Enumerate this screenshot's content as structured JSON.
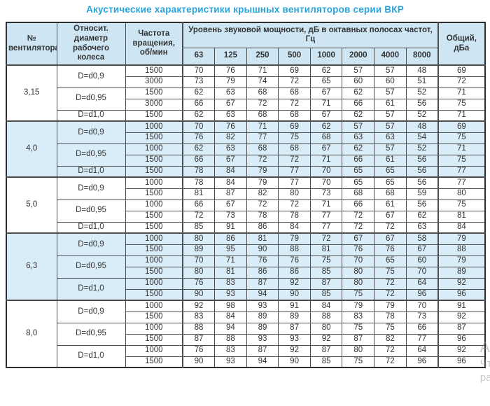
{
  "title": "Акустические характеристики крышных вентиляторов серии ВКР",
  "colors": {
    "title_accent": "#29a3dc",
    "header_bg": "#cee6f4",
    "shaded_row_bg": "#d9edf8",
    "border": "#4d4d4d"
  },
  "watermark": {
    "fragments": [
      "Ак",
      "Чт",
      "ра"
    ]
  },
  "table": {
    "headers": {
      "fan": "№ вентилятора",
      "diameter": "Относит. диаметр рабочего колеса",
      "speed": "Частота вращения, об/мин",
      "span": "Уровень звуковой мощности, дБ в октавных полосах частот, Гц",
      "frequencies": [
        "63",
        "125",
        "250",
        "500",
        "1000",
        "2000",
        "4000",
        "8000"
      ],
      "total": "Общий, дБа"
    },
    "groups": [
      {
        "fan": "3,15",
        "shaded": false,
        "diameters": [
          {
            "label": "D=d0,9",
            "rows": [
              {
                "speed": "1500",
                "levels": [
                  70,
                  76,
                  71,
                  69,
                  62,
                  57,
                  57,
                  48
                ],
                "total": 69
              },
              {
                "speed": "3000",
                "levels": [
                  73,
                  79,
                  74,
                  72,
                  65,
                  60,
                  60,
                  51
                ],
                "total": 72
              }
            ]
          },
          {
            "label": "D=d0,95",
            "rows": [
              {
                "speed": "1500",
                "levels": [
                  62,
                  63,
                  68,
                  68,
                  67,
                  62,
                  57,
                  52
                ],
                "total": 71
              },
              {
                "speed": "3000",
                "levels": [
                  66,
                  67,
                  72,
                  72,
                  71,
                  66,
                  61,
                  56
                ],
                "total": 75
              }
            ]
          },
          {
            "label": "D=d1,0",
            "rows": [
              {
                "speed": "1500",
                "levels": [
                  62,
                  63,
                  68,
                  68,
                  67,
                  62,
                  57,
                  52
                ],
                "total": 71
              }
            ]
          }
        ]
      },
      {
        "fan": "4,0",
        "shaded": true,
        "diameters": [
          {
            "label": "D=d0,9",
            "rows": [
              {
                "speed": "1000",
                "levels": [
                  70,
                  76,
                  71,
                  69,
                  62,
                  57,
                  57,
                  48
                ],
                "total": 69
              },
              {
                "speed": "1500",
                "levels": [
                  76,
                  82,
                  77,
                  75,
                  68,
                  63,
                  63,
                  54
                ],
                "total": 75
              }
            ]
          },
          {
            "label": "D=d0,95",
            "rows": [
              {
                "speed": "1000",
                "levels": [
                  62,
                  63,
                  68,
                  68,
                  67,
                  62,
                  57,
                  52
                ],
                "total": 71
              },
              {
                "speed": "1500",
                "levels": [
                  66,
                  67,
                  72,
                  72,
                  71,
                  66,
                  61,
                  56
                ],
                "total": 75
              }
            ]
          },
          {
            "label": "D=d1,0",
            "rows": [
              {
                "speed": "1500",
                "levels": [
                  78,
                  84,
                  79,
                  77,
                  70,
                  65,
                  65,
                  56
                ],
                "total": 77
              }
            ]
          }
        ]
      },
      {
        "fan": "5,0",
        "shaded": false,
        "diameters": [
          {
            "label": "D=d0,9",
            "rows": [
              {
                "speed": "1000",
                "levels": [
                  78,
                  84,
                  79,
                  77,
                  70,
                  65,
                  65,
                  56
                ],
                "total": 77
              },
              {
                "speed": "1500",
                "levels": [
                  81,
                  87,
                  82,
                  80,
                  73,
                  68,
                  68,
                  59
                ],
                "total": 80
              }
            ]
          },
          {
            "label": "D=d0,95",
            "rows": [
              {
                "speed": "1000",
                "levels": [
                  66,
                  67,
                  72,
                  72,
                  71,
                  66,
                  61,
                  56
                ],
                "total": 75
              },
              {
                "speed": "1500",
                "levels": [
                  72,
                  73,
                  78,
                  78,
                  77,
                  72,
                  67,
                  62
                ],
                "total": 81
              }
            ]
          },
          {
            "label": "D=d1,0",
            "rows": [
              {
                "speed": "1500",
                "levels": [
                  85,
                  91,
                  86,
                  84,
                  77,
                  72,
                  72,
                  63
                ],
                "total": 84
              }
            ]
          }
        ]
      },
      {
        "fan": "6,3",
        "shaded": true,
        "diameters": [
          {
            "label": "D=d0,9",
            "rows": [
              {
                "speed": "1000",
                "levels": [
                  80,
                  86,
                  81,
                  79,
                  72,
                  67,
                  67,
                  58
                ],
                "total": 79
              },
              {
                "speed": "1500",
                "levels": [
                  89,
                  95,
                  90,
                  88,
                  81,
                  76,
                  76,
                  67
                ],
                "total": 88
              }
            ]
          },
          {
            "label": "D=d0,95",
            "rows": [
              {
                "speed": "1000",
                "levels": [
                  70,
                  71,
                  76,
                  76,
                  75,
                  70,
                  65,
                  60
                ],
                "total": 79
              },
              {
                "speed": "1500",
                "levels": [
                  80,
                  81,
                  86,
                  86,
                  85,
                  80,
                  75,
                  70
                ],
                "total": 89
              }
            ]
          },
          {
            "label": "D=d1,0",
            "rows": [
              {
                "speed": "1000",
                "levels": [
                  76,
                  83,
                  87,
                  92,
                  87,
                  80,
                  72,
                  64
                ],
                "total": 92
              },
              {
                "speed": "1500",
                "levels": [
                  90,
                  93,
                  94,
                  90,
                  85,
                  75,
                  72,
                  96
                ],
                "total": 96
              }
            ]
          }
        ]
      },
      {
        "fan": "8,0",
        "shaded": false,
        "diameters": [
          {
            "label": "D=d0,9",
            "rows": [
              {
                "speed": "1000",
                "levels": [
                  92,
                  98,
                  93,
                  91,
                  84,
                  79,
                  79,
                  70
                ],
                "total": 91
              },
              {
                "speed": "1500",
                "levels": [
                  83,
                  84,
                  89,
                  89,
                  88,
                  83,
                  78,
                  73
                ],
                "total": 92
              }
            ]
          },
          {
            "label": "D=d0,95",
            "rows": [
              {
                "speed": "1000",
                "levels": [
                  88,
                  94,
                  89,
                  87,
                  80,
                  75,
                  75,
                  66
                ],
                "total": 87
              },
              {
                "speed": "1500",
                "levels": [
                  87,
                  88,
                  93,
                  93,
                  92,
                  87,
                  82,
                  77
                ],
                "total": 96
              }
            ]
          },
          {
            "label": "D=d1,0",
            "rows": [
              {
                "speed": "1000",
                "levels": [
                  76,
                  83,
                  87,
                  92,
                  87,
                  80,
                  72,
                  64
                ],
                "total": 92
              },
              {
                "speed": "1500",
                "levels": [
                  90,
                  93,
                  94,
                  90,
                  85,
                  75,
                  72,
                  96
                ],
                "total": 96
              }
            ]
          }
        ]
      }
    ]
  }
}
